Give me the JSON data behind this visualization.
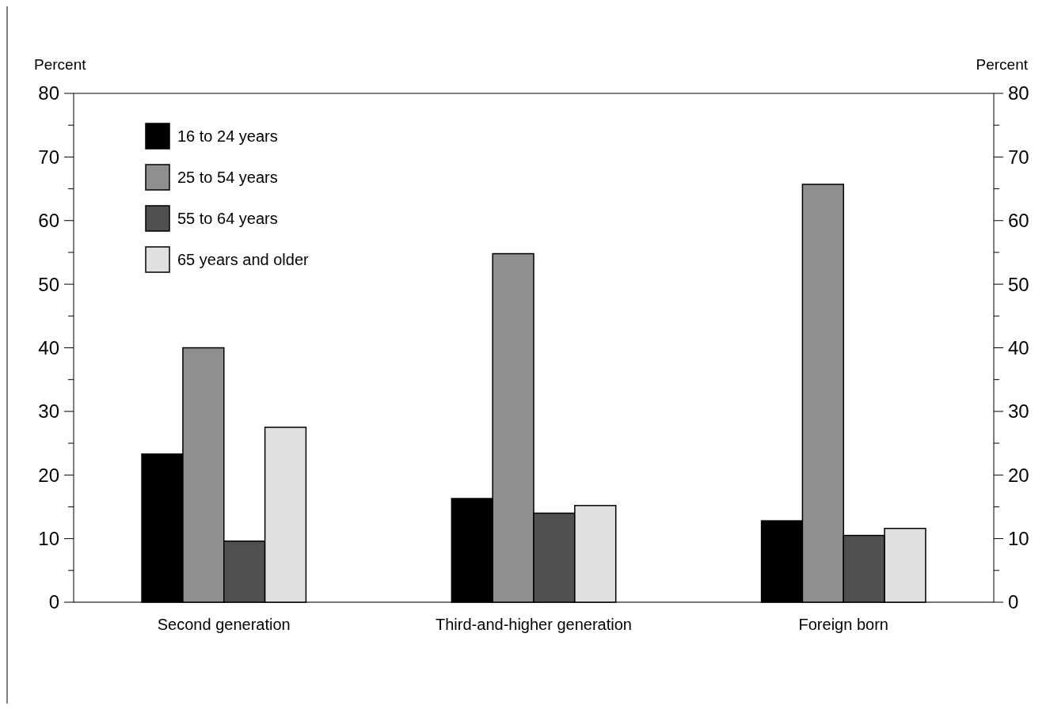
{
  "chart_data": {
    "type": "bar",
    "ylabel": "Percent",
    "y2label": "Percent",
    "categories": [
      "Second generation",
      "Third-and-higher generation",
      "Foreign born"
    ],
    "series": [
      {
        "name": "16 to 24 years",
        "color": "#000000",
        "values": [
          23.3,
          16.3,
          12.8
        ]
      },
      {
        "name": "25 to 54 years",
        "color": "#8f8f8f",
        "values": [
          40.0,
          54.8,
          65.7
        ]
      },
      {
        "name": "55 to 64 years",
        "color": "#505050",
        "values": [
          9.6,
          14.0,
          10.5
        ]
      },
      {
        "name": "65 years and older",
        "color": "#e0e0e0",
        "values": [
          27.5,
          15.2,
          11.6
        ]
      }
    ],
    "ylim": [
      0,
      80
    ],
    "yticks": [
      0,
      {
        "value": 5,
        "label": null
      },
      10,
      {
        "value": 15,
        "label": null
      },
      20,
      {
        "value": 25,
        "label": null
      },
      30,
      {
        "value": 35,
        "label": null
      },
      40,
      {
        "value": 45,
        "label": null
      },
      50,
      {
        "value": 55,
        "label": null
      },
      60,
      {
        "value": 65,
        "label": null
      },
      70,
      {
        "value": 75,
        "label": null
      },
      80
    ],
    "y2lim": [
      0,
      80
    ],
    "y2ticks": [
      0,
      {
        "value": 5,
        "label": null
      },
      10,
      {
        "value": 15,
        "label": null
      },
      20,
      {
        "value": 25,
        "label": null
      },
      30,
      {
        "value": 35,
        "label": null
      },
      40,
      {
        "value": 45,
        "label": null
      },
      50,
      {
        "value": 55,
        "label": null
      },
      60,
      {
        "value": 65,
        "label": null
      },
      70,
      {
        "value": 75,
        "label": null
      },
      80
    ],
    "legend": "top left",
    "grid": false
  }
}
